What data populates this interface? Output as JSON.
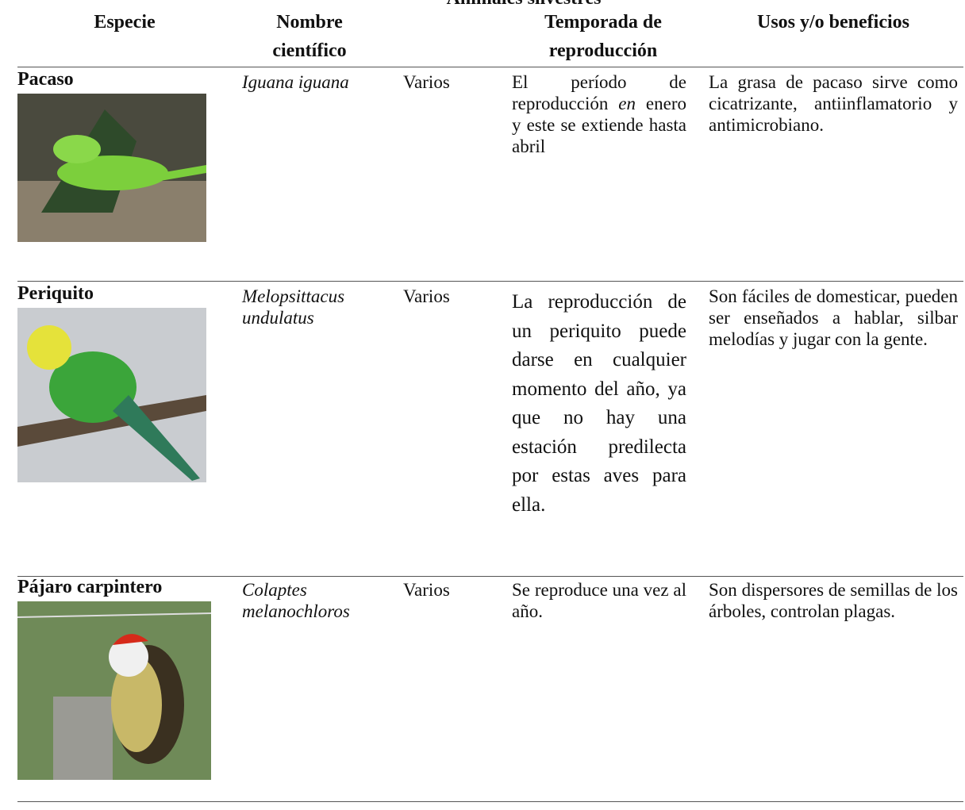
{
  "title": "Animales silvestres",
  "header": {
    "species": "Especie",
    "scientific": "Nombre científico",
    "season": "Temporada de reproducción",
    "uses": "Usos y/o beneficios"
  },
  "rows": [
    {
      "species": "Pacaso",
      "scientific": "Iguana iguana",
      "extra": "Varios",
      "season": [
        "El período de reproducción ",
        "en",
        " enero y este se extiende hasta abril"
      ],
      "uses": "La grasa de pacaso sirve como cicatrizante, antiinflamatorio y antimicrobiano."
    },
    {
      "species": "Periquito",
      "scientific": "Melopsittacus undulatus",
      "extra": "Varios",
      "season": [
        "La reproducción de un periquito puede darse en cualquier momento del año, ya que no hay una estación predilecta por estas aves para ella."
      ],
      "uses": "Son fáciles de domesticar, pueden ser enseñados a hablar, silbar melodías y jugar con la gente."
    },
    {
      "species": "Pájaro carpintero",
      "scientific": "Colaptes melanochloros",
      "extra": "Varios",
      "season": [
        "Se reproduce una vez al año."
      ],
      "uses": "Son dispersores de semillas de los árboles, controlan plagas."
    }
  ]
}
